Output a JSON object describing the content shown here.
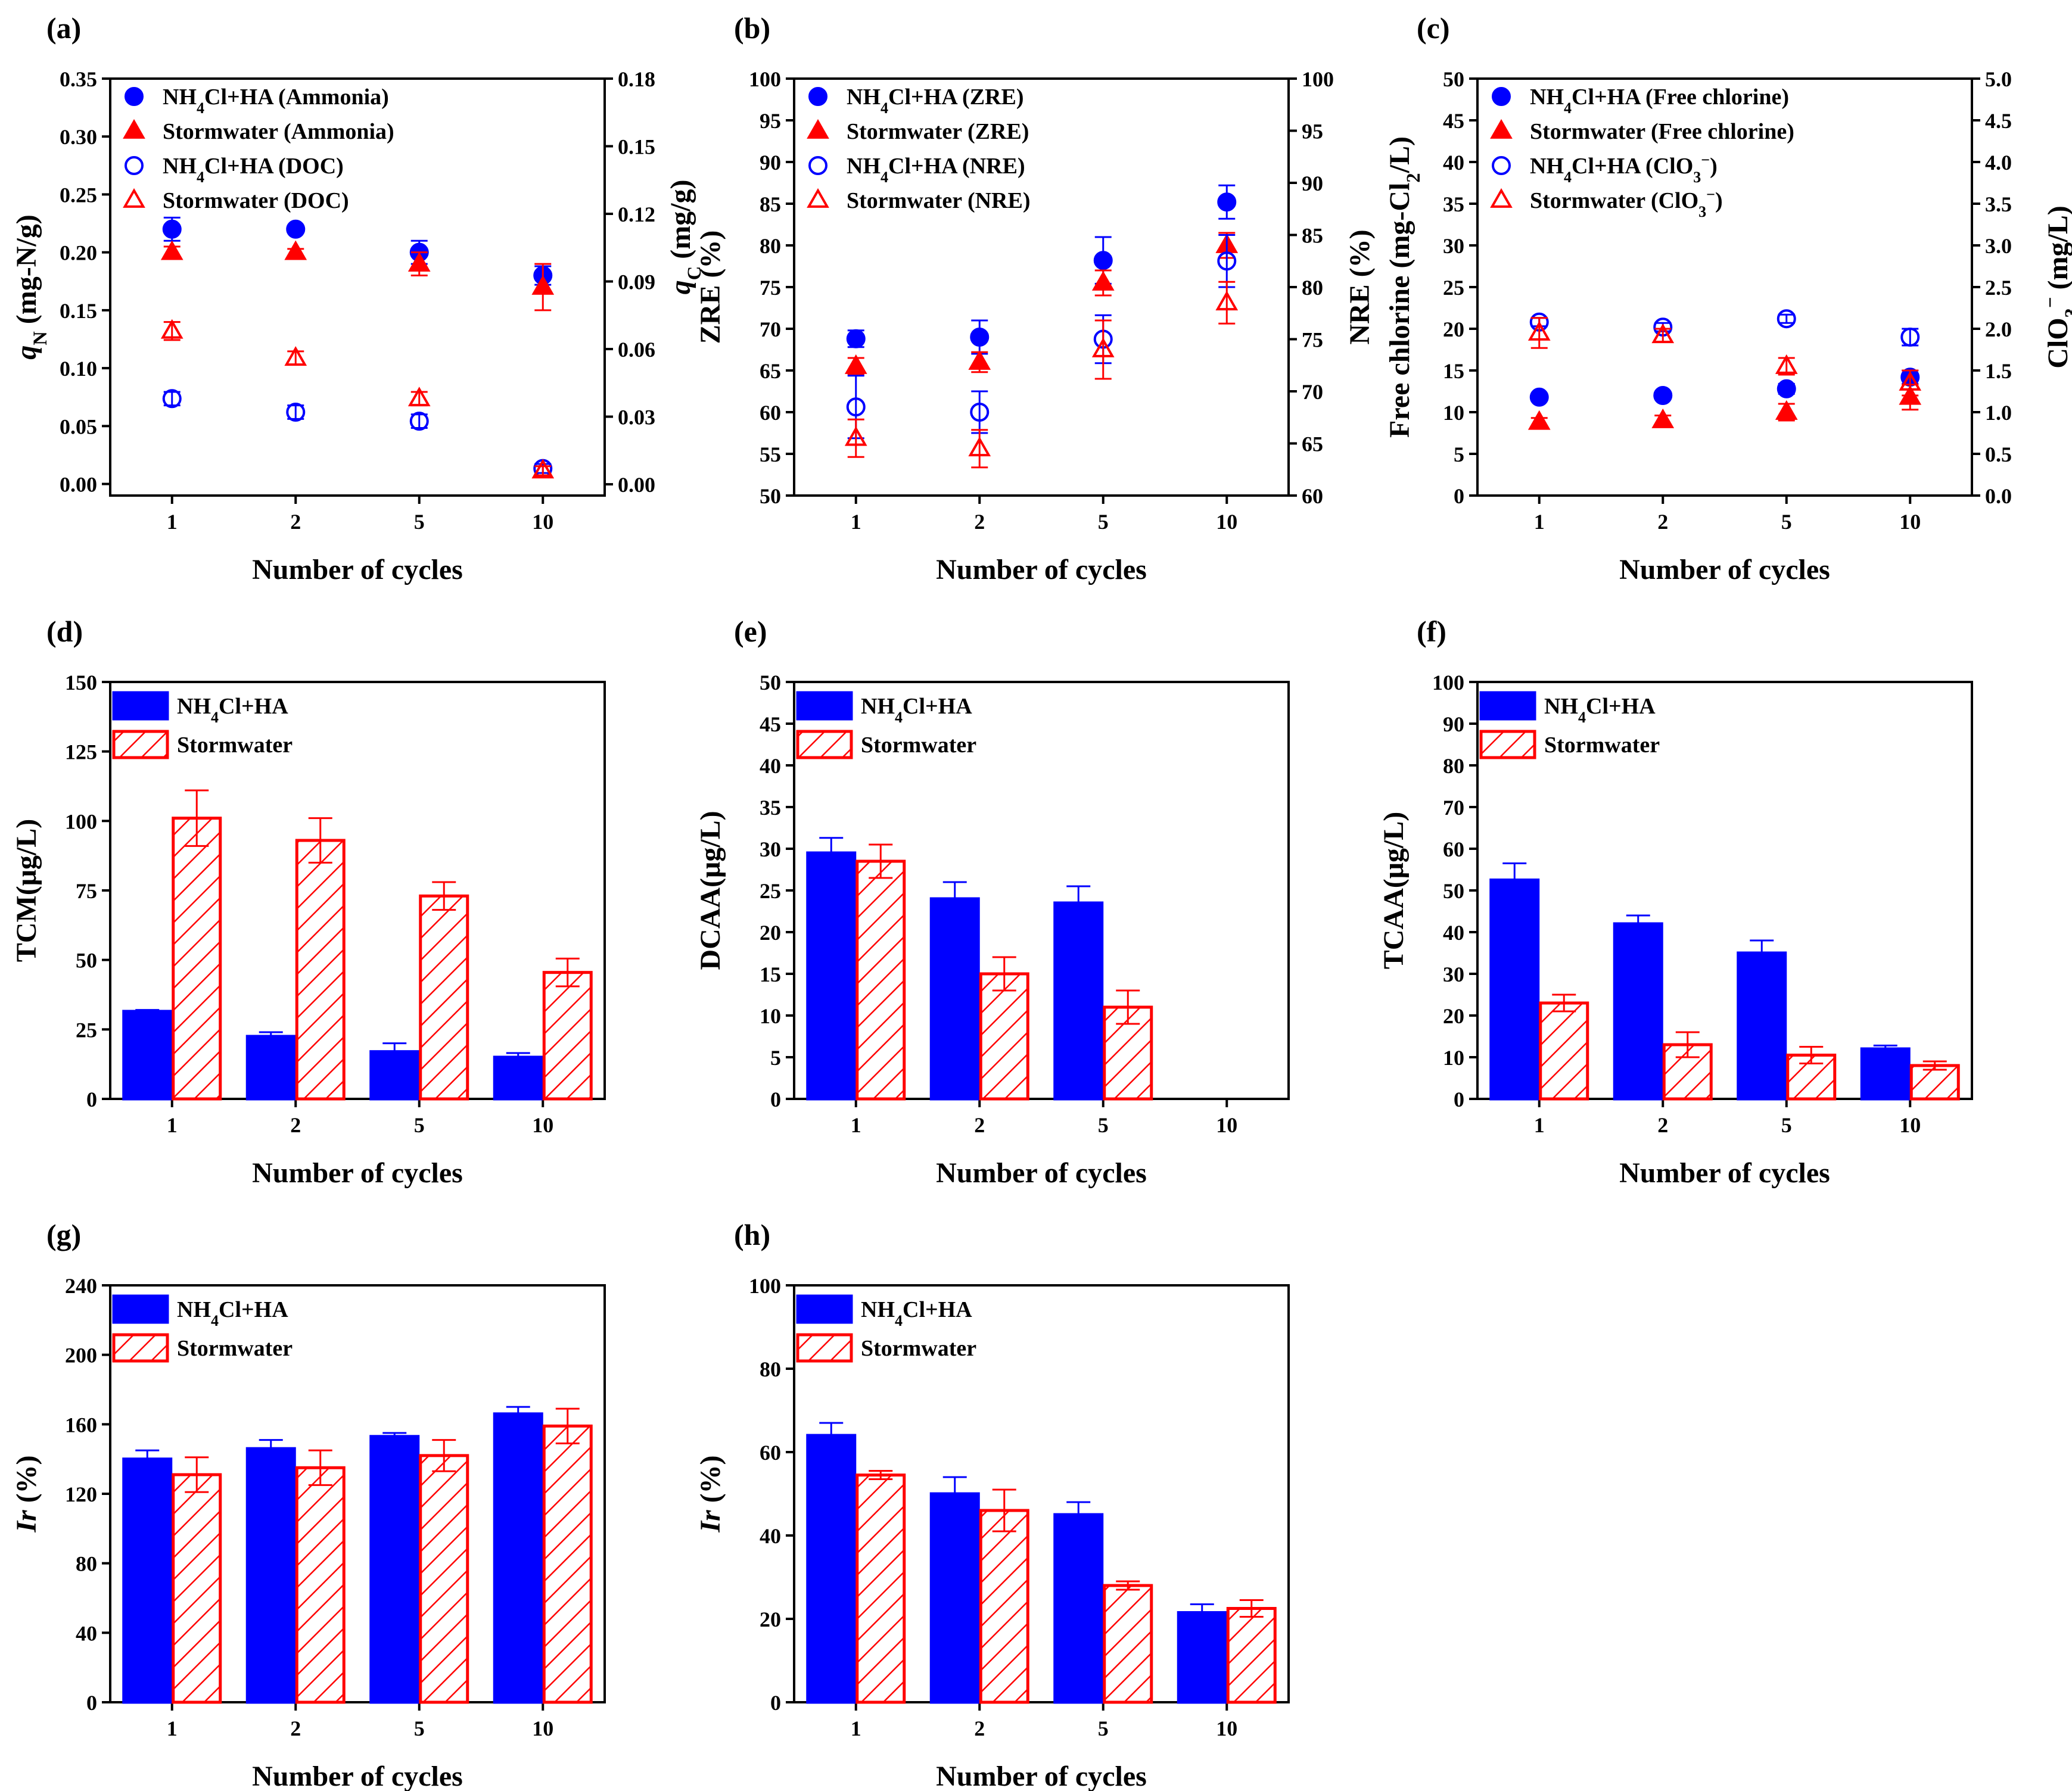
{
  "colors": {
    "blue": "#0000ff",
    "red": "#ff0000",
    "axis": "#000000"
  },
  "chart_data": [
    {
      "id": "a",
      "panel_label": "(a)",
      "type": "scatter",
      "categories": [
        "1",
        "2",
        "5",
        "10"
      ],
      "xlabel": "Number of cycles",
      "ylabel": {
        "main": "q",
        "sub": "N",
        "rest": " (mg-N/g)"
      },
      "y2label": {
        "main": "q",
        "sub": "C",
        "rest": " (mg/g)"
      },
      "ylim": [
        -0.01,
        0.35
      ],
      "yticks": [
        "0.00",
        "0.05",
        "0.10",
        "0.15",
        "0.20",
        "0.25",
        "0.30",
        "0.35"
      ],
      "y2lim": [
        -0.005,
        0.18
      ],
      "y2ticks": [
        "0.00",
        "0.03",
        "0.06",
        "0.09",
        "0.12",
        "0.15",
        "0.18"
      ],
      "legend": [
        {
          "pre": "NH",
          "sub": "4",
          "post": "Cl+HA (Ammonia)",
          "marker": "circle-filled",
          "color": "blue"
        },
        {
          "pre": "Stormwater (Ammonia)",
          "sub": "",
          "post": "",
          "marker": "triangle-filled",
          "color": "red"
        },
        {
          "pre": "NH",
          "sub": "4",
          "post": "Cl+HA (DOC)",
          "marker": "circle-open",
          "color": "blue"
        },
        {
          "pre": "Stormwater (DOC)",
          "sub": "",
          "post": "",
          "marker": "triangle-open",
          "color": "red"
        }
      ],
      "series": [
        {
          "name": "NH4Cl+HA (Ammonia)",
          "axis": "left",
          "marker": "circle-filled",
          "color": "blue",
          "values": [
            0.22,
            0.22,
            0.2,
            0.18
          ],
          "errors": [
            0.01,
            0.002,
            0.01,
            0.008
          ]
        },
        {
          "name": "Stormwater (Ammonia)",
          "axis": "left",
          "marker": "triangle-filled",
          "color": "red",
          "values": [
            0.2,
            0.2,
            0.19,
            0.17
          ],
          "errors": [
            0.005,
            0.003,
            0.01,
            0.02
          ]
        },
        {
          "name": "NH4Cl+HA (DOC)",
          "axis": "right",
          "marker": "circle-open",
          "color": "blue",
          "values": [
            0.038,
            0.032,
            0.028,
            0.007
          ],
          "errors": [
            0.003,
            0.003,
            0.003,
            0.002
          ]
        },
        {
          "name": "Stormwater (DOC)",
          "axis": "right",
          "marker": "triangle-open",
          "color": "red",
          "values": [
            0.068,
            0.056,
            0.038,
            0.006
          ],
          "errors": [
            0.004,
            0.003,
            0.003,
            0.002
          ]
        }
      ]
    },
    {
      "id": "b",
      "panel_label": "(b)",
      "type": "scatter",
      "categories": [
        "1",
        "2",
        "5",
        "10"
      ],
      "xlabel": "Number of cycles",
      "ylabel": {
        "main": "ZRE (%)",
        "sub": "",
        "rest": ""
      },
      "y2label": {
        "main": "NRE (%)",
        "sub": "",
        "rest": ""
      },
      "ylim": [
        50,
        100
      ],
      "yticks": [
        "50",
        "55",
        "60",
        "65",
        "70",
        "75",
        "80",
        "85",
        "90",
        "95",
        "100"
      ],
      "y2lim": [
        60,
        100
      ],
      "y2ticks": [
        "60",
        "65",
        "70",
        "75",
        "80",
        "85",
        "90",
        "95",
        "100"
      ],
      "legend": [
        {
          "pre": "NH",
          "sub": "4",
          "post": "Cl+HA (ZRE)",
          "marker": "circle-filled",
          "color": "blue"
        },
        {
          "pre": "Stormwater (ZRE)",
          "sub": "",
          "post": "",
          "marker": "triangle-filled",
          "color": "red"
        },
        {
          "pre": "NH",
          "sub": "4",
          "post": "Cl+HA (NRE)",
          "marker": "circle-open",
          "color": "blue"
        },
        {
          "pre": "Stormwater (NRE)",
          "sub": "",
          "post": "",
          "marker": "triangle-open",
          "color": "red"
        }
      ],
      "series": [
        {
          "name": "NH4Cl+HA (ZRE)",
          "axis": "left",
          "marker": "circle-filled",
          "color": "blue",
          "values": [
            68.8,
            69.0,
            78.2,
            85.2
          ],
          "errors": [
            1.0,
            2.0,
            2.8,
            2.0
          ]
        },
        {
          "name": "Stormwater (ZRE)",
          "axis": "left",
          "marker": "triangle-filled",
          "color": "red",
          "values": [
            65.5,
            66.0,
            75.5,
            80.0
          ],
          "errors": [
            1.0,
            1.2,
            1.5,
            1.5
          ]
        },
        {
          "name": "NH4Cl+HA (NRE)",
          "axis": "right",
          "marker": "circle-open",
          "color": "blue",
          "values": [
            68.5,
            68.0,
            75.0,
            82.5
          ],
          "errors": [
            3.0,
            2.0,
            2.3,
            2.5
          ]
        },
        {
          "name": "Stormwater (NRE)",
          "axis": "right",
          "marker": "triangle-open",
          "color": "red",
          "values": [
            65.5,
            64.5,
            74.0,
            78.5
          ],
          "errors": [
            1.8,
            1.8,
            2.8,
            2.0
          ]
        }
      ]
    },
    {
      "id": "c",
      "panel_label": "(c)",
      "type": "scatter",
      "categories": [
        "1",
        "2",
        "5",
        "10"
      ],
      "xlabel": "Number of cycles",
      "ylabel": {
        "main": "Free chlorine (mg-Cl",
        "sub": "2",
        "rest": "/L)"
      },
      "y2label": {
        "main": "ClO",
        "sub": "3",
        "sup": "−",
        "rest": " (mg/L)"
      },
      "ylim": [
        0,
        50
      ],
      "yticks": [
        "0",
        "5",
        "10",
        "15",
        "20",
        "25",
        "30",
        "35",
        "40",
        "45",
        "50"
      ],
      "y2lim": [
        0,
        5
      ],
      "y2ticks": [
        "0.0",
        "0.5",
        "1.0",
        "1.5",
        "2.0",
        "2.5",
        "3.0",
        "3.5",
        "4.0",
        "4.5",
        "5.0"
      ],
      "legend": [
        {
          "pre": "NH",
          "sub": "4",
          "post": "Cl+HA (Free chlorine)",
          "marker": "circle-filled",
          "color": "blue"
        },
        {
          "pre": "Stormwater (Free chlorine)",
          "sub": "",
          "post": "",
          "marker": "triangle-filled",
          "color": "red"
        },
        {
          "pre": "NH",
          "sub": "4",
          "post": "Cl+HA (ClO",
          "sub2": "3",
          "sup2": "−",
          "post2": ")",
          "marker": "circle-open",
          "color": "blue"
        },
        {
          "pre": "Stormwater (ClO",
          "sub": "",
          "post": "",
          "sub2": "3",
          "sup2": "−",
          "post2": ")",
          "marker": "triangle-open",
          "color": "red"
        }
      ],
      "series": [
        {
          "name": "NH4Cl+HA (Free chlorine)",
          "axis": "left",
          "marker": "circle-filled",
          "color": "blue",
          "values": [
            11.8,
            12.0,
            12.8,
            14.2
          ],
          "errors": [
            0.4,
            0.4,
            0.6,
            0.8
          ]
        },
        {
          "name": "Stormwater (Free chlorine)",
          "axis": "left",
          "marker": "triangle-filled",
          "color": "red",
          "values": [
            8.8,
            9.0,
            10.0,
            11.8
          ],
          "errors": [
            0.5,
            0.6,
            1.0,
            1.5
          ]
        },
        {
          "name": "NH4Cl+HA (ClO3-)",
          "axis": "right",
          "marker": "circle-open",
          "color": "blue",
          "values": [
            2.08,
            2.02,
            2.12,
            1.9
          ],
          "errors": [
            0.05,
            0.05,
            0.05,
            0.1
          ]
        },
        {
          "name": "Stormwater (ClO3-)",
          "axis": "right",
          "marker": "triangle-open",
          "color": "red",
          "values": [
            1.95,
            1.92,
            1.55,
            1.35
          ],
          "errors": [
            0.18,
            0.08,
            0.1,
            0.15
          ]
        }
      ]
    },
    {
      "id": "d",
      "panel_label": "(d)",
      "type": "bar",
      "categories": [
        "1",
        "2",
        "5",
        "10"
      ],
      "xlabel": "Number of cycles",
      "ylabel": {
        "main": "TCM(μg/L)",
        "sub": "",
        "rest": ""
      },
      "ylim": [
        0,
        150
      ],
      "yticks": [
        "0",
        "25",
        "50",
        "75",
        "100",
        "125",
        "150"
      ],
      "legend": [
        {
          "pre": "NH",
          "sub": "4",
          "post": "Cl+HA",
          "marker": "bar-solid",
          "color": "blue"
        },
        {
          "pre": "Stormwater",
          "sub": "",
          "post": "",
          "marker": "bar-hatched",
          "color": "red"
        }
      ],
      "series": [
        {
          "name": "NH4Cl+HA",
          "style": "solid",
          "color": "blue",
          "values": [
            31.5,
            22.5,
            17.0,
            15.0
          ],
          "errors": [
            0.5,
            1.5,
            3.0,
            1.5
          ]
        },
        {
          "name": "Stormwater",
          "style": "hatched",
          "color": "red",
          "values": [
            101,
            93,
            73,
            45.5
          ],
          "errors": [
            10,
            8,
            5,
            5
          ]
        }
      ]
    },
    {
      "id": "e",
      "panel_label": "(e)",
      "type": "bar",
      "categories": [
        "1",
        "2",
        "5",
        "10"
      ],
      "xlabel": "Number of cycles",
      "ylabel": {
        "main": "DCAA(μg/L)",
        "sub": "",
        "rest": ""
      },
      "ylim": [
        0,
        50
      ],
      "yticks": [
        "0",
        "5",
        "10",
        "15",
        "20",
        "25",
        "30",
        "35",
        "40",
        "45",
        "50"
      ],
      "legend": [
        {
          "pre": "NH",
          "sub": "4",
          "post": "Cl+HA",
          "marker": "bar-solid",
          "color": "blue"
        },
        {
          "pre": "Stormwater",
          "sub": "",
          "post": "",
          "marker": "bar-hatched",
          "color": "red"
        }
      ],
      "series": [
        {
          "name": "NH4Cl+HA",
          "style": "solid",
          "color": "blue",
          "values": [
            29.5,
            24.0,
            23.5,
            0
          ],
          "errors": [
            1.8,
            2.0,
            2.0,
            0
          ]
        },
        {
          "name": "Stormwater",
          "style": "hatched",
          "color": "red",
          "values": [
            28.5,
            15.0,
            11.0,
            0
          ],
          "errors": [
            2.0,
            2.0,
            2.0,
            0
          ]
        }
      ]
    },
    {
      "id": "f",
      "panel_label": "(f)",
      "type": "bar",
      "categories": [
        "1",
        "2",
        "5",
        "10"
      ],
      "xlabel": "Number of cycles",
      "ylabel": {
        "main": "TCAA(μg/L)",
        "sub": "",
        "rest": ""
      },
      "ylim": [
        0,
        100
      ],
      "yticks": [
        "0",
        "10",
        "20",
        "30",
        "40",
        "50",
        "60",
        "70",
        "80",
        "90",
        "100"
      ],
      "legend": [
        {
          "pre": "NH",
          "sub": "4",
          "post": "Cl+HA",
          "marker": "bar-solid",
          "color": "blue"
        },
        {
          "pre": "Stormwater",
          "sub": "",
          "post": "",
          "marker": "bar-hatched",
          "color": "red"
        }
      ],
      "series": [
        {
          "name": "NH4Cl+HA",
          "style": "solid",
          "color": "blue",
          "values": [
            52.5,
            42.0,
            35.0,
            12.0
          ],
          "errors": [
            4.0,
            2.0,
            3.0,
            0.8
          ]
        },
        {
          "name": "Stormwater",
          "style": "hatched",
          "color": "red",
          "values": [
            23.0,
            13.0,
            10.5,
            8.0
          ],
          "errors": [
            2.0,
            3.0,
            2.0,
            1.0
          ]
        }
      ]
    },
    {
      "id": "g",
      "panel_label": "(g)",
      "type": "bar",
      "categories": [
        "1",
        "2",
        "5",
        "10"
      ],
      "xlabel": "Number of cycles",
      "ylabel": {
        "main": "Ir",
        "sub": "",
        "rest": " (%)"
      },
      "ylim": [
        0,
        240
      ],
      "yticks": [
        "0",
        "40",
        "80",
        "120",
        "160",
        "200",
        "240"
      ],
      "legend": [
        {
          "pre": "NH",
          "sub": "4",
          "post": "Cl+HA",
          "marker": "bar-solid",
          "color": "blue"
        },
        {
          "pre": "Stormwater",
          "sub": "",
          "post": "",
          "marker": "bar-hatched",
          "color": "red"
        }
      ],
      "series": [
        {
          "name": "NH4Cl+HA",
          "style": "solid",
          "color": "blue",
          "values": [
            140,
            146,
            153,
            166
          ],
          "errors": [
            5,
            5,
            2,
            4
          ]
        },
        {
          "name": "Stormwater",
          "style": "hatched",
          "color": "red",
          "values": [
            131,
            135,
            142,
            159
          ],
          "errors": [
            10,
            10,
            9,
            10
          ]
        }
      ]
    },
    {
      "id": "h",
      "panel_label": "(h)",
      "type": "bar",
      "categories": [
        "1",
        "2",
        "5",
        "10"
      ],
      "xlabel": "Number of cycles",
      "ylabel": {
        "main": "Ir",
        "sub": "",
        "rest": " (%)"
      },
      "ylim": [
        0,
        100
      ],
      "yticks": [
        "0",
        "20",
        "40",
        "60",
        "80",
        "100"
      ],
      "legend": [
        {
          "pre": "NH",
          "sub": "4",
          "post": "Cl+HA",
          "marker": "bar-solid",
          "color": "blue"
        },
        {
          "pre": "Stormwater",
          "sub": "",
          "post": "",
          "marker": "bar-hatched",
          "color": "red"
        }
      ],
      "series": [
        {
          "name": "NH4Cl+HA",
          "style": "solid",
          "color": "blue",
          "values": [
            64.0,
            50.0,
            45.0,
            21.5
          ],
          "errors": [
            3.0,
            4.0,
            3.0,
            2.0
          ]
        },
        {
          "name": "Stormwater",
          "style": "hatched",
          "color": "red",
          "values": [
            54.5,
            46.0,
            28.0,
            22.5
          ],
          "errors": [
            1.0,
            5.0,
            1.0,
            2.0
          ]
        }
      ]
    }
  ]
}
